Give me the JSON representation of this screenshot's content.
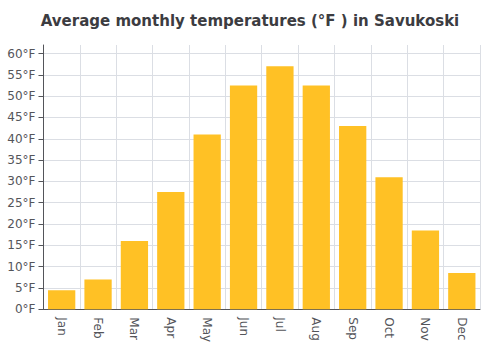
{
  "chart_data": {
    "type": "bar",
    "title": "Average monthly temperatures (°F ) in Savukoski",
    "categories": [
      "Jan",
      "Feb",
      "Mar",
      "Apr",
      "May",
      "Jun",
      "Jul",
      "Aug",
      "Sep",
      "Oct",
      "Nov",
      "Dec"
    ],
    "values": [
      4.5,
      7.0,
      16.0,
      27.5,
      41.0,
      52.5,
      57.0,
      52.5,
      43.0,
      31.0,
      18.5,
      8.5
    ],
    "color": "#FFC125",
    "ylim": [
      0,
      62
    ],
    "yticks": [
      {
        "value": 0,
        "label": "0°F"
      },
      {
        "value": 5,
        "label": "5°F"
      },
      {
        "value": 10,
        "label": "10°F"
      },
      {
        "value": 15,
        "label": "15°F"
      },
      {
        "value": 20,
        "label": "20°F"
      },
      {
        "value": 25,
        "label": "25°F"
      },
      {
        "value": 30,
        "label": "30°F"
      },
      {
        "value": 35,
        "label": "35°F"
      },
      {
        "value": 40,
        "label": "40°F"
      },
      {
        "value": 45,
        "label": "45°F"
      },
      {
        "value": 50,
        "label": "50°F"
      },
      {
        "value": 55,
        "label": "55°F"
      },
      {
        "value": 60,
        "label": "60°F"
      }
    ],
    "grid": true
  }
}
